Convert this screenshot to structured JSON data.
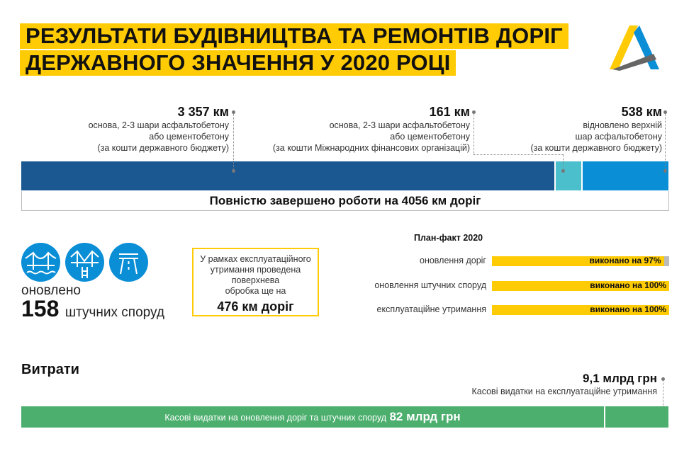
{
  "title": {
    "line1": "РЕЗУЛЬТАТИ БУДІВНИЦТВА ТА РЕМОНТІВ ДОРІГ",
    "line2": "ДЕРЖАВНОГО ЗНАЧЕННЯ У 2020 РОЦІ"
  },
  "roads": {
    "segments": [
      {
        "km": "3 357 км",
        "desc": [
          "основа, 2-3 шари асфальтобетону",
          "або цементобетону",
          "(за кошти державного бюджету)"
        ],
        "value": 3357,
        "color": "#1b5891"
      },
      {
        "km": "161 км",
        "desc": [
          "основа, 2-3 шари асфальтобетону",
          "або цементобетону",
          "(за кошти Міжнародних фінансових організацій)"
        ],
        "value": 161,
        "color": "#4bbfcc"
      },
      {
        "km": "538 км",
        "desc": [
          "відновлено верхній",
          "шар асфальтобетону",
          "(за кошти державного бюджету)"
        ],
        "value": 538,
        "color": "#0a8ed6"
      }
    ],
    "total": "Повністю завершено роботи на 4056 км доріг"
  },
  "structures": {
    "icons": [
      "suspension-bridge-icon",
      "overpass-bridge-icon",
      "highway-icon"
    ],
    "updated": "оновлено",
    "count": "158",
    "unit": "штучних споруд"
  },
  "maintenance": {
    "lines": [
      "У рамках експлуатаційного",
      "утримання проведена",
      "поверхнева",
      "обробка ще на"
    ],
    "value": "476 км доріг"
  },
  "plan_fact": {
    "title": "План-факт 2020",
    "rows": [
      {
        "label": "оновлення доріг",
        "text": "виконано на 97%",
        "percent": 97
      },
      {
        "label": "оновлення штучних споруд",
        "text": "виконано на 100%",
        "percent": 100
      },
      {
        "label": "експлуатаційне утримання",
        "text": "виконано на 100%",
        "percent": 100
      }
    ]
  },
  "expenses": {
    "title": "Витрати",
    "small_value": "9,1 млрд грн",
    "small_caption": "Касові видатки на експлуатаційне утримання",
    "main_caption": "Касові видатки на оновлення доріг та штучних споруд",
    "main_value": "82 млрд грн",
    "color": "#4caf6e"
  },
  "colors": {
    "accent": "#ffcb05"
  }
}
